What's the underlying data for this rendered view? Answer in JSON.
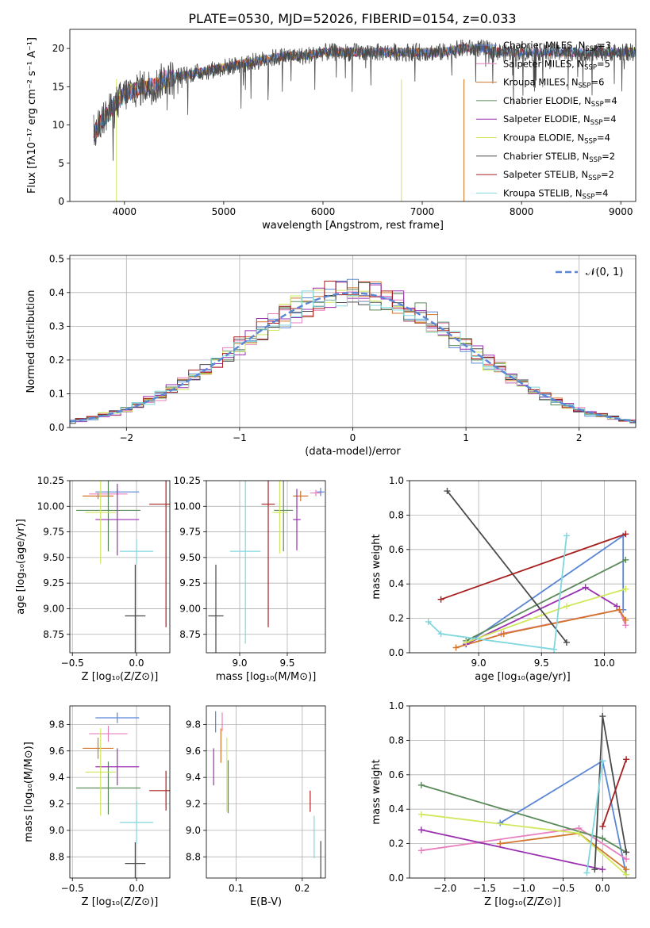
{
  "title": "PLATE=0530, MJD=52026, FIBERID=0154, z=0.033",
  "series": [
    {
      "name": "Chabrier MILES, N",
      "sub": "SSP",
      "suffix": "=3",
      "color": "#5b86d6"
    },
    {
      "name": "Salpeter MILES, N",
      "sub": "SSP",
      "suffix": "=5",
      "color": "#e87fbf"
    },
    {
      "name": "Kroupa MILES, N",
      "sub": "SSP",
      "suffix": "=6",
      "color": "#d2752b"
    },
    {
      "name": "Chabrier ELODIE, N",
      "sub": "SSP",
      "suffix": "=4",
      "color": "#5a8a5a"
    },
    {
      "name": "Salpeter ELODIE, N",
      "sub": "SSP",
      "suffix": "=4",
      "color": "#9a2fb0"
    },
    {
      "name": "Kroupa ELODIE, N",
      "sub": "SSP",
      "suffix": "=4",
      "color": "#cfe85b"
    },
    {
      "name": "Chabrier STELIB, N",
      "sub": "SSP",
      "suffix": "=2",
      "color": "#4a4a4a"
    },
    {
      "name": "Salpeter STELIB, N",
      "sub": "SSP",
      "suffix": "=2",
      "color": "#a81e1e"
    },
    {
      "name": "Kroupa STELIB, N",
      "sub": "SSP",
      "suffix": "=4",
      "color": "#7fd7de"
    }
  ],
  "chart_data": [
    {
      "type": "line",
      "panel": "spectrum",
      "xlabel": "wavelength [Angstrom, rest frame]",
      "ylabel": "Flux [fλ10⁻¹⁷ erg cm⁻² s⁻¹ A⁻¹]",
      "xlim": [
        3450,
        9150
      ],
      "ylim": [
        0,
        22.5
      ],
      "xticks": [
        4000,
        5000,
        6000,
        7000,
        8000,
        9000
      ],
      "yticks": [
        0,
        5,
        10,
        15,
        20
      ],
      "continuum": {
        "x": [
          3700,
          3800,
          3900,
          4000,
          4100,
          4200,
          4300,
          4400,
          4600,
          4800,
          5000,
          5200,
          5400,
          5600,
          5800,
          6000,
          6200,
          6400,
          6600,
          6800,
          7000,
          7200,
          7400,
          7600,
          7800,
          8000,
          8200,
          8400,
          8600,
          8800,
          9000,
          9150
        ],
        "y": [
          9,
          11,
          12.5,
          14,
          14.5,
          15,
          15,
          16,
          16.5,
          17,
          17.5,
          18,
          18.5,
          19,
          19,
          19.5,
          19.5,
          19.5,
          19.5,
          19.5,
          19.5,
          19.5,
          20,
          20,
          19.5,
          19.5,
          19.5,
          19.5,
          19.5,
          19.5,
          19.5,
          19.5
        ]
      },
      "dropouts": [
        {
          "series": 2,
          "x": 7420
        },
        {
          "series": 5,
          "x": 6790
        },
        {
          "series": 5,
          "x": 3920
        }
      ]
    },
    {
      "type": "histogram",
      "panel": "residuals",
      "xlabel": "(data-model)/error",
      "ylabel": "Normed distribution",
      "xlim": [
        -2.5,
        2.5
      ],
      "ylim": [
        0,
        0.51
      ],
      "xticks": [
        -2,
        -1,
        0,
        1,
        2
      ],
      "yticks": [
        0.0,
        0.1,
        0.2,
        0.3,
        0.4,
        0.5
      ],
      "bin_width": 0.1,
      "reference_label": "𝒩(0, 1)",
      "reference_color": "#5b86d6"
    },
    {
      "type": "scatter",
      "panel": "Z-age",
      "xlabel": "Z [log₁₀(Z/Z⊙)]",
      "ylabel": "age  [log₁₀(age/yr)]",
      "xlim": [
        -0.52,
        0.26
      ],
      "ylim": [
        8.57,
        10.25
      ],
      "xticks": [
        -0.5,
        0.0
      ],
      "yticks": [
        8.75,
        9.0,
        9.25,
        9.5,
        9.75,
        10.0,
        10.25
      ],
      "points": [
        {
          "s": 0,
          "x": -0.15,
          "y": 10.14,
          "xerr": 0.17,
          "yerr": 0.03
        },
        {
          "s": 1,
          "x": -0.22,
          "y": 10.12,
          "xerr": 0.15,
          "yerr": 0.03
        },
        {
          "s": 2,
          "x": -0.3,
          "y": 10.1,
          "xerr": 0.12,
          "yerr": 0.03
        },
        {
          "s": 3,
          "x": -0.22,
          "y": 9.96,
          "xerr": 0.25,
          "yerr": 0.4
        },
        {
          "s": 4,
          "x": -0.15,
          "y": 9.87,
          "xerr": 0.17,
          "yerr": 0.35
        },
        {
          "s": 5,
          "x": -0.28,
          "y": 9.94,
          "xerr": 0.12,
          "yerr": 0.5
        },
        {
          "s": 6,
          "x": -0.01,
          "y": 8.93,
          "xerr": 0.08,
          "yerr": 0.5
        },
        {
          "s": 7,
          "x": 0.23,
          "y": 10.02,
          "xerr": 0.13,
          "yerr": 1.2
        },
        {
          "s": 8,
          "x": 0.0,
          "y": 9.56,
          "xerr": 0.13,
          "yerr": 0.12
        }
      ]
    },
    {
      "type": "scatter",
      "panel": "mass-age",
      "xlabel": "mass [log₁₀(M/M⊙)]",
      "ylabel": "",
      "xlim": [
        8.65,
        9.9
      ],
      "ylim": [
        8.57,
        10.25
      ],
      "xticks": [
        9.0,
        9.5
      ],
      "yticks": [
        8.75,
        9.0,
        9.25,
        9.5,
        9.75,
        10.0,
        10.25
      ],
      "points": [
        {
          "s": 0,
          "x": 9.85,
          "y": 10.14,
          "xerr": 0.04,
          "yerr": 0.04
        },
        {
          "s": 1,
          "x": 9.8,
          "y": 10.13,
          "xerr": 0.06,
          "yerr": 0.03
        },
        {
          "s": 2,
          "x": 9.64,
          "y": 10.1,
          "xerr": 0.08,
          "yerr": 0.05
        },
        {
          "s": 3,
          "x": 9.46,
          "y": 9.96,
          "xerr": 0.1,
          "yerr": 0.4
        },
        {
          "s": 4,
          "x": 9.6,
          "y": 9.87,
          "xerr": 0.04,
          "yerr": 0.3
        },
        {
          "s": 5,
          "x": 9.42,
          "y": 9.94,
          "xerr": 0.08,
          "yerr": 0.4
        },
        {
          "s": 6,
          "x": 8.75,
          "y": 8.93,
          "xerr": 0.08,
          "yerr": 0.5
        },
        {
          "s": 7,
          "x": 9.3,
          "y": 10.02,
          "xerr": 0.07,
          "yerr": 1.2
        },
        {
          "s": 8,
          "x": 9.06,
          "y": 9.56,
          "xerr": 0.16,
          "yerr": 0.9
        }
      ]
    },
    {
      "type": "line",
      "panel": "age-weight",
      "xlabel": "age  [log₁₀(age/yr)]",
      "ylabel": "mass weight",
      "xlim": [
        8.45,
        10.25
      ],
      "ylim": [
        0,
        1.0
      ],
      "xticks": [
        9.0,
        9.5,
        10.0
      ],
      "yticks": [
        0.0,
        0.2,
        0.4,
        0.6,
        0.8,
        1.0
      ],
      "lines": [
        {
          "s": 0,
          "x": [
            8.9,
            10.15,
            10.15
          ],
          "y": [
            0.05,
            0.68,
            0.25
          ]
        },
        {
          "s": 1,
          "x": [
            9.18,
            10.12,
            10.17
          ],
          "y": [
            0.11,
            0.25,
            0.16
          ]
        },
        {
          "s": 2,
          "x": [
            8.82,
            9.2,
            10.12,
            10.17
          ],
          "y": [
            0.03,
            0.11,
            0.25,
            0.19
          ]
        },
        {
          "s": 3,
          "x": [
            8.9,
            10.17
          ],
          "y": [
            0.07,
            0.54
          ]
        },
        {
          "s": 4,
          "x": [
            8.9,
            9.85,
            10.1
          ],
          "y": [
            0.05,
            0.38,
            0.27
          ]
        },
        {
          "s": 5,
          "x": [
            8.9,
            9.7,
            10.17
          ],
          "y": [
            0.06,
            0.27,
            0.37
          ]
        },
        {
          "s": 6,
          "x": [
            8.75,
            9.7
          ],
          "y": [
            0.94,
            0.06
          ]
        },
        {
          "s": 7,
          "x": [
            8.7,
            10.17
          ],
          "y": [
            0.31,
            0.69
          ]
        },
        {
          "s": 8,
          "x": [
            8.6,
            8.7,
            9.6,
            9.7
          ],
          "y": [
            0.18,
            0.11,
            0.02,
            0.68
          ]
        }
      ]
    },
    {
      "type": "scatter",
      "panel": "Z-mass",
      "xlabel": "Z [log₁₀(Z/Z⊙)]",
      "ylabel": "mass [log₁₀(M/M⊙)]",
      "xlim": [
        -0.52,
        0.26
      ],
      "ylim": [
        8.64,
        9.94
      ],
      "xticks": [
        -0.5,
        0.0
      ],
      "yticks": [
        8.8,
        9.0,
        9.2,
        9.4,
        9.6,
        9.8
      ],
      "points": [
        {
          "s": 0,
          "x": -0.15,
          "y": 9.85,
          "xerr": 0.17,
          "yerr": 0.04
        },
        {
          "s": 1,
          "x": -0.22,
          "y": 9.73,
          "xerr": 0.15,
          "yerr": 0.06
        },
        {
          "s": 2,
          "x": -0.3,
          "y": 9.62,
          "xerr": 0.12,
          "yerr": 0.08
        },
        {
          "s": 3,
          "x": -0.22,
          "y": 9.32,
          "xerr": 0.25,
          "yerr": 0.2
        },
        {
          "s": 4,
          "x": -0.15,
          "y": 9.48,
          "xerr": 0.17,
          "yerr": 0.14
        },
        {
          "s": 5,
          "x": -0.28,
          "y": 9.44,
          "xerr": 0.12,
          "yerr": 0.33
        },
        {
          "s": 6,
          "x": -0.01,
          "y": 8.75,
          "xerr": 0.08,
          "yerr": 0.16
        },
        {
          "s": 7,
          "x": 0.23,
          "y": 9.3,
          "xerr": 0.13,
          "yerr": 0.15
        },
        {
          "s": 8,
          "x": 0.0,
          "y": 9.06,
          "xerr": 0.13,
          "yerr": 0.16
        }
      ]
    },
    {
      "type": "scatter",
      "panel": "EBV-mass",
      "xlabel": "E(B-V)",
      "ylabel": "",
      "xlim": [
        0.055,
        0.235
      ],
      "ylim": [
        8.64,
        9.94
      ],
      "xticks": [
        0.1,
        0.2
      ],
      "yticks": [
        8.8,
        9.0,
        9.2,
        9.4,
        9.6,
        9.8
      ],
      "points": [
        {
          "s": 0,
          "x": 0.069,
          "y": 9.82,
          "xerr": 0,
          "yerr": 0.08
        },
        {
          "s": 1,
          "x": 0.079,
          "y": 9.82,
          "xerr": 0,
          "yerr": 0.07
        },
        {
          "s": 2,
          "x": 0.077,
          "y": 9.64,
          "xerr": 0,
          "yerr": 0.13
        },
        {
          "s": 3,
          "x": 0.088,
          "y": 9.33,
          "xerr": 0,
          "yerr": 0.2
        },
        {
          "s": 4,
          "x": 0.066,
          "y": 9.48,
          "xerr": 0,
          "yerr": 0.14
        },
        {
          "s": 5,
          "x": 0.086,
          "y": 9.42,
          "xerr": 0,
          "yerr": 0.28
        },
        {
          "s": 6,
          "x": 0.228,
          "y": 8.75,
          "xerr": 0,
          "yerr": 0.17
        },
        {
          "s": 7,
          "x": 0.212,
          "y": 9.22,
          "xerr": 0,
          "yerr": 0.08
        },
        {
          "s": 8,
          "x": 0.218,
          "y": 8.95,
          "xerr": 0,
          "yerr": 0.16
        }
      ]
    },
    {
      "type": "line",
      "panel": "Z-weight",
      "xlabel": "Z [log₁₀(Z/Z⊙)]",
      "ylabel": "mass weight",
      "xlim": [
        -2.45,
        0.42
      ],
      "ylim": [
        0,
        1.0
      ],
      "xticks": [
        -2.0,
        -1.5,
        -1.0,
        -0.5,
        0.0
      ],
      "yticks": [
        0.0,
        0.2,
        0.4,
        0.6,
        0.8,
        1.0
      ],
      "lines": [
        {
          "s": 0,
          "x": [
            -1.3,
            0.0,
            0.3
          ],
          "y": [
            0.32,
            0.68,
            0.02
          ]
        },
        {
          "s": 1,
          "x": [
            -2.3,
            -0.3,
            0.3
          ],
          "y": [
            0.16,
            0.29,
            0.11
          ]
        },
        {
          "s": 2,
          "x": [
            -1.3,
            -0.3,
            0.3
          ],
          "y": [
            0.2,
            0.26,
            0.05
          ]
        },
        {
          "s": 3,
          "x": [
            -2.3,
            0.0,
            0.3
          ],
          "y": [
            0.54,
            0.23,
            0.15
          ]
        },
        {
          "s": 4,
          "x": [
            -2.3,
            0.0
          ],
          "y": [
            0.28,
            0.05
          ]
        },
        {
          "s": 5,
          "x": [
            -2.3,
            -0.3,
            0.3
          ],
          "y": [
            0.37,
            0.26,
            0.02
          ]
        },
        {
          "s": 6,
          "x": [
            -0.1,
            0.0,
            0.3
          ],
          "y": [
            0.05,
            0.94,
            0.15
          ]
        },
        {
          "s": 7,
          "x": [
            0.0,
            0.3
          ],
          "y": [
            0.3,
            0.69
          ]
        },
        {
          "s": 8,
          "x": [
            -0.2,
            0.0
          ],
          "y": [
            0.03,
            0.68
          ]
        }
      ]
    }
  ]
}
